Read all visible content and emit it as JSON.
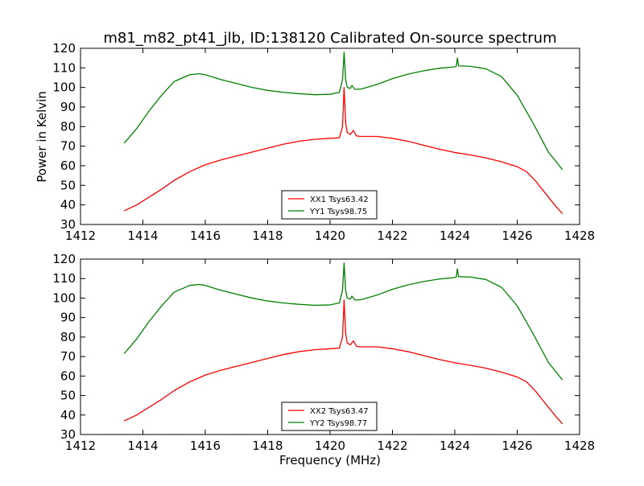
{
  "chart_data": [
    {
      "type": "line",
      "title": "m81_m82_pt41_jlb, ID:138120 Calibrated On-source spectrum",
      "xlabel": "",
      "ylabel": "Power in Kelvin",
      "xlim": [
        1412,
        1428
      ],
      "ylim": [
        30,
        120
      ],
      "xticks": [
        "1412",
        "1414",
        "1416",
        "1418",
        "1420",
        "1422",
        "1424",
        "1426",
        "1428"
      ],
      "yticks": [
        "30",
        "40",
        "50",
        "60",
        "70",
        "80",
        "90",
        "100",
        "110",
        "120"
      ],
      "grid": false,
      "legend_position": "bottom-center",
      "series": [
        {
          "name": "XX1 Tsys63.42",
          "color": "#ff0000",
          "points": [
            [
              1413.4,
              37
            ],
            [
              1413.8,
              40
            ],
            [
              1414.2,
              44
            ],
            [
              1414.6,
              48
            ],
            [
              1415.0,
              52.5
            ],
            [
              1415.5,
              57
            ],
            [
              1416.0,
              60.5
            ],
            [
              1416.5,
              63
            ],
            [
              1417.0,
              65
            ],
            [
              1417.5,
              67
            ],
            [
              1418.0,
              69
            ],
            [
              1418.5,
              71
            ],
            [
              1419.0,
              72.5
            ],
            [
              1419.5,
              73.5
            ],
            [
              1420.0,
              74
            ],
            [
              1420.3,
              74.3
            ],
            [
              1420.4,
              80
            ],
            [
              1420.45,
              100
            ],
            [
              1420.5,
              82
            ],
            [
              1420.55,
              77
            ],
            [
              1420.65,
              76
            ],
            [
              1420.75,
              78
            ],
            [
              1420.85,
              75.2
            ],
            [
              1421.0,
              75
            ],
            [
              1421.5,
              75
            ],
            [
              1422.0,
              74
            ],
            [
              1422.5,
              72.5
            ],
            [
              1423.0,
              70.5
            ],
            [
              1423.5,
              68.5
            ],
            [
              1424.0,
              66.8
            ],
            [
              1424.5,
              65.5
            ],
            [
              1425.0,
              64
            ],
            [
              1425.5,
              62
            ],
            [
              1426.0,
              59.5
            ],
            [
              1426.3,
              57
            ],
            [
              1426.6,
              52
            ],
            [
              1426.9,
              46
            ],
            [
              1427.2,
              40
            ],
            [
              1427.45,
              35.5
            ]
          ]
        },
        {
          "name": "YY1 Tsys98.75",
          "color": "#008000",
          "points": [
            [
              1413.4,
              71.5
            ],
            [
              1413.8,
              79
            ],
            [
              1414.2,
              88
            ],
            [
              1414.6,
              96
            ],
            [
              1415.0,
              103
            ],
            [
              1415.5,
              106.5
            ],
            [
              1415.8,
              107
            ],
            [
              1416.0,
              106.5
            ],
            [
              1416.5,
              104
            ],
            [
              1417.0,
              102
            ],
            [
              1417.5,
              100
            ],
            [
              1418.0,
              98.5
            ],
            [
              1418.5,
              97.5
            ],
            [
              1419.0,
              96.8
            ],
            [
              1419.5,
              96.3
            ],
            [
              1420.0,
              96.5
            ],
            [
              1420.3,
              97.5
            ],
            [
              1420.4,
              104
            ],
            [
              1420.45,
              118
            ],
            [
              1420.5,
              104
            ],
            [
              1420.55,
              100
            ],
            [
              1420.65,
              99.5
            ],
            [
              1420.7,
              101
            ],
            [
              1420.8,
              99
            ],
            [
              1421.0,
              99.2
            ],
            [
              1421.5,
              101.5
            ],
            [
              1422.0,
              104.5
            ],
            [
              1422.5,
              106.8
            ],
            [
              1423.0,
              108.5
            ],
            [
              1423.5,
              109.8
            ],
            [
              1424.0,
              110.5
            ],
            [
              1424.05,
              111
            ],
            [
              1424.08,
              115
            ],
            [
              1424.12,
              111
            ],
            [
              1424.5,
              110.8
            ],
            [
              1425.0,
              109.5
            ],
            [
              1425.5,
              105.5
            ],
            [
              1426.0,
              96
            ],
            [
              1426.5,
              82
            ],
            [
              1427.0,
              67
            ],
            [
              1427.45,
              58
            ]
          ]
        }
      ]
    },
    {
      "type": "line",
      "title": "",
      "xlabel": "Frequency (MHz)",
      "ylabel": "",
      "xlim": [
        1412,
        1428
      ],
      "ylim": [
        30,
        120
      ],
      "xticks": [
        "1412",
        "1414",
        "1416",
        "1418",
        "1420",
        "1422",
        "1424",
        "1426",
        "1428"
      ],
      "yticks": [
        "30",
        "40",
        "50",
        "60",
        "70",
        "80",
        "90",
        "100",
        "110",
        "120"
      ],
      "grid": false,
      "legend_position": "bottom-center",
      "series": [
        {
          "name": "XX2 Tsys63.47",
          "color": "#ff0000",
          "points": [
            [
              1413.4,
              37
            ],
            [
              1413.8,
              40
            ],
            [
              1414.2,
              44
            ],
            [
              1414.6,
              48
            ],
            [
              1415.0,
              52.5
            ],
            [
              1415.5,
              57
            ],
            [
              1416.0,
              60.5
            ],
            [
              1416.5,
              63
            ],
            [
              1417.0,
              65
            ],
            [
              1417.5,
              67
            ],
            [
              1418.0,
              69
            ],
            [
              1418.5,
              71
            ],
            [
              1419.0,
              72.5
            ],
            [
              1419.5,
              73.5
            ],
            [
              1420.0,
              74
            ],
            [
              1420.3,
              74.3
            ],
            [
              1420.4,
              80
            ],
            [
              1420.45,
              99
            ],
            [
              1420.5,
              82
            ],
            [
              1420.55,
              77
            ],
            [
              1420.65,
              76
            ],
            [
              1420.75,
              78
            ],
            [
              1420.85,
              75.2
            ],
            [
              1421.0,
              75
            ],
            [
              1421.5,
              75
            ],
            [
              1422.0,
              74
            ],
            [
              1422.5,
              72.5
            ],
            [
              1423.0,
              70.5
            ],
            [
              1423.5,
              68.5
            ],
            [
              1424.0,
              66.8
            ],
            [
              1424.5,
              65.5
            ],
            [
              1425.0,
              64
            ],
            [
              1425.5,
              62
            ],
            [
              1426.0,
              59.5
            ],
            [
              1426.3,
              57
            ],
            [
              1426.6,
              52
            ],
            [
              1426.9,
              46
            ],
            [
              1427.2,
              40
            ],
            [
              1427.45,
              35.5
            ]
          ]
        },
        {
          "name": "YY2 Tsys98.77",
          "color": "#008000",
          "points": [
            [
              1413.4,
              71.5
            ],
            [
              1413.8,
              79
            ],
            [
              1414.2,
              88
            ],
            [
              1414.6,
              96
            ],
            [
              1415.0,
              103
            ],
            [
              1415.5,
              106.5
            ],
            [
              1415.8,
              107
            ],
            [
              1416.0,
              106.5
            ],
            [
              1416.5,
              104
            ],
            [
              1417.0,
              102
            ],
            [
              1417.5,
              100
            ],
            [
              1418.0,
              98.5
            ],
            [
              1418.5,
              97.5
            ],
            [
              1419.0,
              96.8
            ],
            [
              1419.5,
              96.3
            ],
            [
              1420.0,
              96.5
            ],
            [
              1420.3,
              97.5
            ],
            [
              1420.4,
              104
            ],
            [
              1420.45,
              118
            ],
            [
              1420.5,
              104
            ],
            [
              1420.55,
              100
            ],
            [
              1420.65,
              99.5
            ],
            [
              1420.7,
              101
            ],
            [
              1420.8,
              99
            ],
            [
              1421.0,
              99.2
            ],
            [
              1421.5,
              101.5
            ],
            [
              1422.0,
              104.5
            ],
            [
              1422.5,
              106.8
            ],
            [
              1423.0,
              108.5
            ],
            [
              1423.5,
              109.8
            ],
            [
              1424.0,
              110.5
            ],
            [
              1424.05,
              111
            ],
            [
              1424.08,
              115
            ],
            [
              1424.12,
              111
            ],
            [
              1424.5,
              110.8
            ],
            [
              1425.0,
              109.5
            ],
            [
              1425.5,
              105.5
            ],
            [
              1426.0,
              96
            ],
            [
              1426.5,
              82
            ],
            [
              1427.0,
              67
            ],
            [
              1427.45,
              58
            ]
          ]
        }
      ]
    }
  ]
}
